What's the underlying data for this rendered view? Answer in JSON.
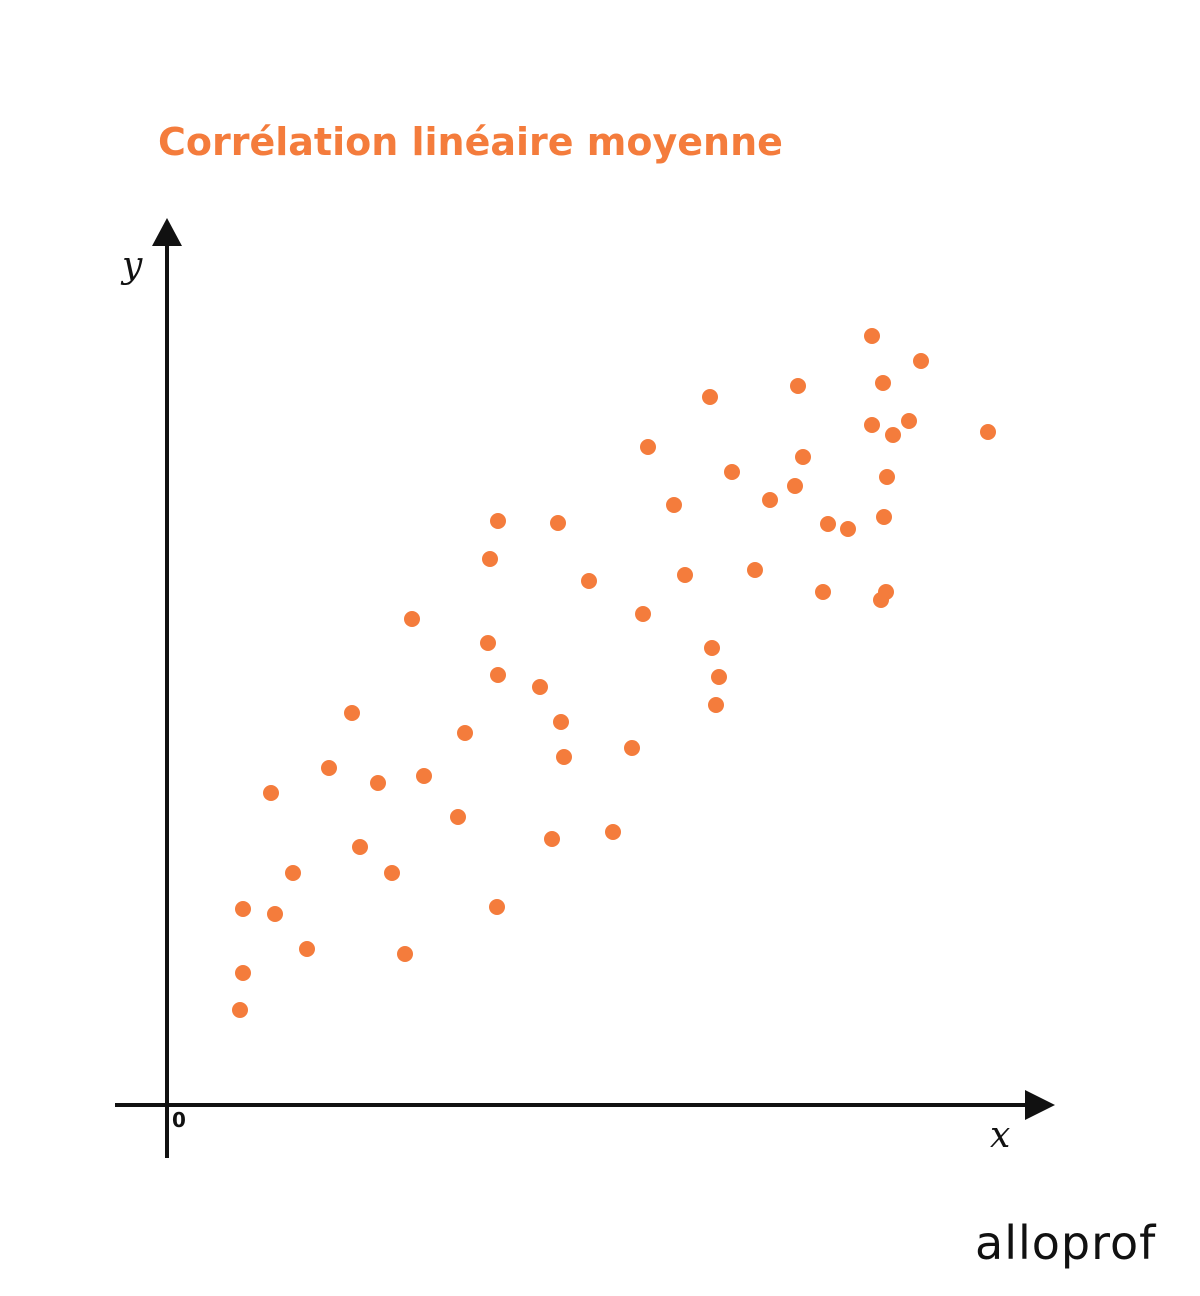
{
  "brand": {
    "name": "alloprof"
  },
  "colors": {
    "accent": "#F47C3C",
    "axis": "#111111"
  },
  "chart_data": {
    "type": "scatter",
    "title": "Corrélation linéaire moyenne",
    "xlabel": "x",
    "ylabel": "y",
    "origin_label": "0",
    "xlim": [
      0,
      880
    ],
    "ylim": [
      0,
      880
    ],
    "grid": false,
    "legend": "none",
    "points": [
      {
        "x": 73,
        "y": 95
      },
      {
        "x": 76,
        "y": 132
      },
      {
        "x": 76,
        "y": 196
      },
      {
        "x": 108,
        "y": 191
      },
      {
        "x": 140,
        "y": 156
      },
      {
        "x": 104,
        "y": 312
      },
      {
        "x": 126,
        "y": 232
      },
      {
        "x": 162,
        "y": 337
      },
      {
        "x": 185,
        "y": 392
      },
      {
        "x": 193,
        "y": 258
      },
      {
        "x": 211,
        "y": 322
      },
      {
        "x": 225,
        "y": 232
      },
      {
        "x": 238,
        "y": 151
      },
      {
        "x": 245,
        "y": 486
      },
      {
        "x": 257,
        "y": 329
      },
      {
        "x": 291,
        "y": 288
      },
      {
        "x": 298,
        "y": 372
      },
      {
        "x": 321,
        "y": 462
      },
      {
        "x": 323,
        "y": 546
      },
      {
        "x": 330,
        "y": 198
      },
      {
        "x": 331,
        "y": 430
      },
      {
        "x": 331,
        "y": 584
      },
      {
        "x": 373,
        "y": 418
      },
      {
        "x": 385,
        "y": 266
      },
      {
        "x": 394,
        "y": 383
      },
      {
        "x": 397,
        "y": 348
      },
      {
        "x": 391,
        "y": 582
      },
      {
        "x": 422,
        "y": 524
      },
      {
        "x": 446,
        "y": 273
      },
      {
        "x": 465,
        "y": 357
      },
      {
        "x": 476,
        "y": 491
      },
      {
        "x": 481,
        "y": 658
      },
      {
        "x": 507,
        "y": 600
      },
      {
        "x": 518,
        "y": 530
      },
      {
        "x": 545,
        "y": 457
      },
      {
        "x": 549,
        "y": 400
      },
      {
        "x": 552,
        "y": 428
      },
      {
        "x": 543,
        "y": 708
      },
      {
        "x": 565,
        "y": 633
      },
      {
        "x": 588,
        "y": 535
      },
      {
        "x": 603,
        "y": 605
      },
      {
        "x": 628,
        "y": 619
      },
      {
        "x": 631,
        "y": 719
      },
      {
        "x": 636,
        "y": 648
      },
      {
        "x": 656,
        "y": 513
      },
      {
        "x": 661,
        "y": 581
      },
      {
        "x": 681,
        "y": 576
      },
      {
        "x": 716,
        "y": 722
      },
      {
        "x": 705,
        "y": 680
      },
      {
        "x": 720,
        "y": 628
      },
      {
        "x": 714,
        "y": 505
      },
      {
        "x": 717,
        "y": 588
      },
      {
        "x": 719,
        "y": 513
      },
      {
        "x": 705,
        "y": 769
      },
      {
        "x": 726,
        "y": 670
      },
      {
        "x": 742,
        "y": 684
      },
      {
        "x": 754,
        "y": 744
      },
      {
        "x": 821,
        "y": 673
      }
    ]
  }
}
